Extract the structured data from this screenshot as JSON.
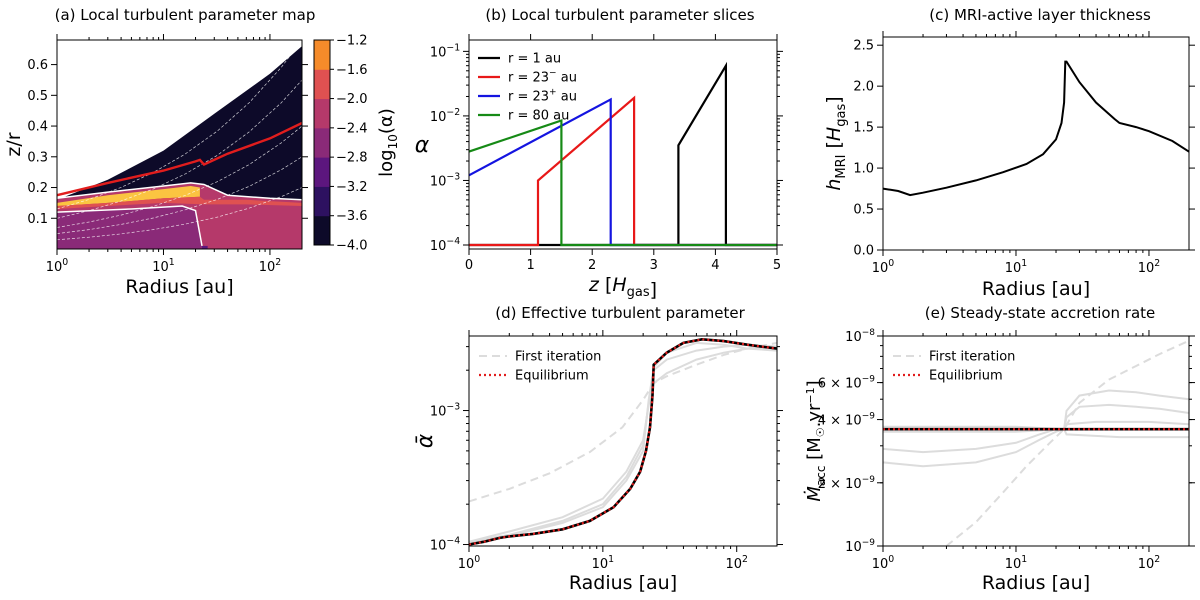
{
  "panels": {
    "a": {
      "title": "(a) Local turbulent parameter map"
    },
    "b": {
      "title": "(b) Local turbulent parameter slices"
    },
    "c": {
      "title": "(c) MRI-active layer thickness"
    },
    "d": {
      "title": "(d) Effective turbulent parameter"
    },
    "e": {
      "title": "(e) Steady-state accretion rate"
    }
  },
  "chart_data": [
    {
      "id": "a",
      "type": "heatmap",
      "title": "(a) Local turbulent parameter map",
      "xlabel": "Radius [au]",
      "ylabel": "z/r",
      "xscale": "log",
      "xlim": [
        1,
        200
      ],
      "ylim": [
        0,
        0.68
      ],
      "x_ticks": [
        {
          "v": 1,
          "b": "10",
          "s": "0"
        },
        {
          "v": 10,
          "b": "10",
          "s": "1"
        },
        {
          "v": 100,
          "b": "10",
          "s": "2"
        }
      ],
      "y_ticks": [
        0.1,
        0.2,
        0.3,
        0.4,
        0.5,
        0.6
      ],
      "colorbar": {
        "label_base": "log",
        "label_sub": "10",
        "label_rest": "(α)",
        "ticks": [
          "−1.2",
          "−1.6",
          "−2.0",
          "−2.4",
          "−2.8",
          "−3.2",
          "−3.6",
          "−4.0"
        ],
        "levels": [
          -4.0,
          -3.6,
          -3.2,
          -2.8,
          -2.4,
          -2.0,
          -1.6,
          -1.2
        ],
        "colors": [
          "#0d0a29",
          "#2d1160",
          "#5c167e",
          "#8a2a78",
          "#b5396a",
          "#df5151",
          "#f58b2a",
          "#fbc441"
        ]
      },
      "boundaries": {
        "disk_surface_zr": [
          [
            1,
            0.16
          ],
          [
            3,
            0.225
          ],
          [
            10,
            0.32
          ],
          [
            30,
            0.44
          ],
          [
            100,
            0.57
          ],
          [
            200,
            0.66
          ]
        ],
        "red_contour_zr": [
          [
            1,
            0.175
          ],
          [
            3,
            0.215
          ],
          [
            10,
            0.255
          ],
          [
            20,
            0.285
          ],
          [
            22,
            0.29
          ],
          [
            24,
            0.275
          ],
          [
            40,
            0.31
          ],
          [
            100,
            0.36
          ],
          [
            200,
            0.41
          ]
        ],
        "active_top_zr": [
          [
            1,
            0.165
          ],
          [
            3,
            0.185
          ],
          [
            10,
            0.205
          ],
          [
            18,
            0.215
          ],
          [
            24,
            0.21
          ],
          [
            40,
            0.175
          ],
          [
            100,
            0.165
          ],
          [
            200,
            0.16
          ]
        ],
        "dead_zone_zr": [
          [
            1,
            0.12
          ],
          [
            5,
            0.13
          ],
          [
            15,
            0.14
          ],
          [
            20,
            0.125
          ],
          [
            23,
            0.01
          ]
        ]
      }
    },
    {
      "id": "b",
      "type": "line",
      "title": "(b) Local turbulent parameter slices",
      "xlabel": "z [H_gas]",
      "ylabel": "α",
      "yscale": "log",
      "xlim": [
        0,
        5
      ],
      "ylim": [
        0.0001,
        0.15
      ],
      "x_ticks": [
        0,
        1,
        2,
        3,
        4,
        5
      ],
      "y_ticks": [
        {
          "v": 0.0001,
          "b": "10",
          "s": "−4"
        },
        {
          "v": 0.001,
          "b": "10",
          "s": "−3"
        },
        {
          "v": 0.01,
          "b": "10",
          "s": "−2"
        },
        {
          "v": 0.1,
          "b": "10",
          "s": "−1"
        }
      ],
      "legend_position": "top-left",
      "series": [
        {
          "label_base": "r = 1 au",
          "label_sup": "",
          "label_tail": "",
          "color": "#000000",
          "x": [
            0,
            3.4,
            3.4,
            4.17,
            4.17,
            5
          ],
          "y": [
            0.0001,
            0.0001,
            0.0035,
            0.06,
            0.0001,
            0.0001
          ]
        },
        {
          "label_base": "r = 23",
          "label_sup": "−",
          "label_tail": " au",
          "color": "#e81818",
          "x": [
            0,
            1.12,
            1.12,
            2.68,
            2.68,
            5
          ],
          "y": [
            0.0001,
            0.0001,
            0.001,
            0.019,
            0.0001,
            0.0001
          ]
        },
        {
          "label_base": "r = 23",
          "label_sup": "+",
          "label_tail": " au",
          "color": "#1414e0",
          "x": [
            0,
            2.3,
            2.3,
            5
          ],
          "y": [
            0.0012,
            0.018,
            0.0001,
            0.0001
          ]
        },
        {
          "label_base": "r = 80 au",
          "label_sup": "",
          "label_tail": "",
          "color": "#168a16",
          "x": [
            0,
            1.5,
            1.5,
            5
          ],
          "y": [
            0.0028,
            0.0085,
            0.0001,
            0.0001
          ]
        }
      ]
    },
    {
      "id": "c",
      "type": "line",
      "title": "(c) MRI-active layer thickness",
      "xlabel": "Radius [au]",
      "ylabel": "h_MRI [H_gas]",
      "xscale": "log",
      "xlim": [
        1,
        200
      ],
      "ylim": [
        0,
        2.6
      ],
      "x_ticks": [
        {
          "v": 1,
          "b": "10",
          "s": "0"
        },
        {
          "v": 10,
          "b": "10",
          "s": "1"
        },
        {
          "v": 100,
          "b": "10",
          "s": "2"
        }
      ],
      "y_ticks": [
        "0.0",
        "0.5",
        "1.0",
        "1.5",
        "2.0",
        "2.5"
      ],
      "y_tick_values": [
        0,
        0.5,
        1.0,
        1.5,
        2.0,
        2.5
      ],
      "series": [
        {
          "name": "",
          "color": "#000000",
          "x": [
            1,
            1.3,
            1.6,
            2,
            3,
            5,
            8,
            12,
            16,
            20,
            22,
            23,
            23.5,
            24,
            30,
            40,
            55,
            60,
            80,
            100,
            150,
            200
          ],
          "y": [
            0.75,
            0.72,
            0.67,
            0.7,
            0.76,
            0.85,
            0.95,
            1.05,
            1.17,
            1.35,
            1.55,
            1.8,
            2.3,
            2.3,
            2.05,
            1.8,
            1.6,
            1.55,
            1.5,
            1.45,
            1.33,
            1.2
          ]
        }
      ]
    },
    {
      "id": "d",
      "type": "line",
      "title": "(d) Effective turbulent parameter",
      "xlabel": "Radius [au]",
      "ylabel": "ᾱ",
      "xscale": "log",
      "yscale": "log",
      "xlim": [
        1,
        200
      ],
      "ylim": [
        9.75e-05,
        0.0036
      ],
      "x_ticks": [
        {
          "v": 1,
          "b": "10",
          "s": "0"
        },
        {
          "v": 10,
          "b": "10",
          "s": "1"
        },
        {
          "v": 100,
          "b": "10",
          "s": "2"
        }
      ],
      "y_ticks": [
        {
          "v": 0.0001,
          "b": "10",
          "s": "−4"
        },
        {
          "v": 0.001,
          "b": "10",
          "s": "−3"
        }
      ],
      "legend_position": "top-left",
      "legend": [
        "First iteration",
        "Equilibrium"
      ],
      "first_iteration": {
        "x": [
          1,
          2,
          4,
          8,
          14,
          20,
          24,
          30,
          50,
          80,
          120,
          200
        ],
        "y": [
          0.00021,
          0.00026,
          0.00034,
          0.00049,
          0.00075,
          0.0012,
          0.0016,
          0.0018,
          0.0022,
          0.0026,
          0.0029,
          0.0032
        ]
      },
      "iterations": [
        {
          "x": [
            1,
            2,
            5,
            10,
            15,
            20,
            22,
            24,
            30,
            50,
            80,
            120,
            200
          ],
          "y": [
            0.000105,
            0.000125,
            0.00016,
            0.00022,
            0.00035,
            0.0006,
            0.0011,
            0.0016,
            0.0019,
            0.0024,
            0.0027,
            0.0029,
            0.003
          ]
        },
        {
          "x": [
            1,
            2,
            5,
            10,
            15,
            20,
            22,
            24,
            30,
            50,
            80,
            120,
            200
          ],
          "y": [
            0.000105,
            0.000118,
            0.00015,
            0.0002,
            0.00032,
            0.00055,
            0.00115,
            0.002,
            0.0024,
            0.0028,
            0.003,
            0.0031,
            0.003
          ]
        },
        {
          "x": [
            1,
            2,
            5,
            10,
            15,
            20,
            22,
            24,
            30,
            50,
            80,
            120,
            200
          ],
          "y": [
            0.000102,
            0.000116,
            0.000145,
            0.00019,
            0.0003,
            0.0005,
            0.0012,
            0.0021,
            0.0027,
            0.0032,
            0.0031,
            0.0029,
            0.0028
          ]
        }
      ],
      "equilibrium": {
        "x": [
          1,
          1.3,
          1.7,
          2,
          3,
          5,
          8,
          12,
          16,
          19,
          21,
          22.5,
          23.5,
          24,
          30,
          40,
          55,
          80,
          120,
          200
        ],
        "y": [
          0.0001,
          0.000105,
          0.000112,
          0.000115,
          0.00012,
          0.00013,
          0.00015,
          0.00019,
          0.00026,
          0.00035,
          0.0005,
          0.00075,
          0.0013,
          0.0022,
          0.0027,
          0.0032,
          0.0034,
          0.0033,
          0.0031,
          0.0029
        ]
      }
    },
    {
      "id": "e",
      "type": "line",
      "title": "(e) Steady-state accretion rate",
      "xlabel": "Radius [au]",
      "ylabel": "Ṁ_acc [M☉.yr⁻¹]",
      "xscale": "log",
      "yscale": "log",
      "xlim": [
        1,
        200
      ],
      "ylim": [
        1e-09,
        1e-08
      ],
      "x_ticks": [
        {
          "v": 1,
          "b": "10",
          "s": "0"
        },
        {
          "v": 10,
          "b": "10",
          "s": "1"
        },
        {
          "v": 100,
          "b": "10",
          "s": "2"
        }
      ],
      "y_ticks": [
        {
          "v": 1e-09,
          "m": "",
          "b": "10",
          "s": "−9"
        },
        {
          "v": 2e-09,
          "m": "2 × ",
          "b": "10",
          "s": "−9"
        },
        {
          "v": 4e-09,
          "m": "4 × ",
          "b": "10",
          "s": "−9"
        },
        {
          "v": 6e-09,
          "m": "6 × ",
          "b": "10",
          "s": "−9"
        },
        {
          "v": 1e-08,
          "m": "",
          "b": "10",
          "s": "−8"
        }
      ],
      "legend_position": "top-left",
      "legend": [
        "First iteration",
        "Equilibrium"
      ],
      "first_iteration": {
        "x": [
          3,
          5,
          8,
          12,
          18,
          23,
          30,
          50,
          80,
          120,
          200
        ],
        "y": [
          1e-09,
          1.3e-09,
          1.8e-09,
          2.4e-09,
          3.1e-09,
          3.6e-09,
          4.8e-09,
          6.2e-09,
          7.2e-09,
          8.2e-09,
          9.5e-09
        ]
      },
      "iterations": [
        {
          "x": [
            1,
            2,
            5,
            10,
            15,
            20,
            23,
            24,
            30,
            50,
            80,
            120,
            200
          ],
          "y": [
            2.5e-09,
            2.4e-09,
            2.5e-09,
            2.8e-09,
            3.2e-09,
            3.5e-09,
            3.6e-09,
            4.4e-09,
            5.2e-09,
            5.5e-09,
            5.4e-09,
            5.2e-09,
            5e-09
          ]
        },
        {
          "x": [
            1,
            2,
            5,
            10,
            15,
            20,
            23,
            24,
            30,
            50,
            80,
            120,
            200
          ],
          "y": [
            2.9e-09,
            2.8e-09,
            2.9e-09,
            3.1e-09,
            3.4e-09,
            3.6e-09,
            3.6e-09,
            4.1e-09,
            4.6e-09,
            4.7e-09,
            4.6e-09,
            4.5e-09,
            4.3e-09
          ]
        },
        {
          "x": [
            1,
            3,
            10,
            23,
            24,
            40,
            100,
            200
          ],
          "y": [
            3.5e-09,
            3.5e-09,
            3.5e-09,
            3.6e-09,
            3.8e-09,
            3.9e-09,
            3.9e-09,
            3.8e-09
          ]
        },
        {
          "x": [
            1,
            10,
            23,
            24,
            60,
            200
          ],
          "y": [
            3.7e-09,
            3.7e-09,
            3.6e-09,
            3.4e-09,
            3.3e-09,
            3.3e-09
          ]
        }
      ],
      "equilibrium": {
        "x": [
          1,
          200
        ],
        "y": [
          3.6e-09,
          3.6e-09
        ]
      }
    }
  ]
}
